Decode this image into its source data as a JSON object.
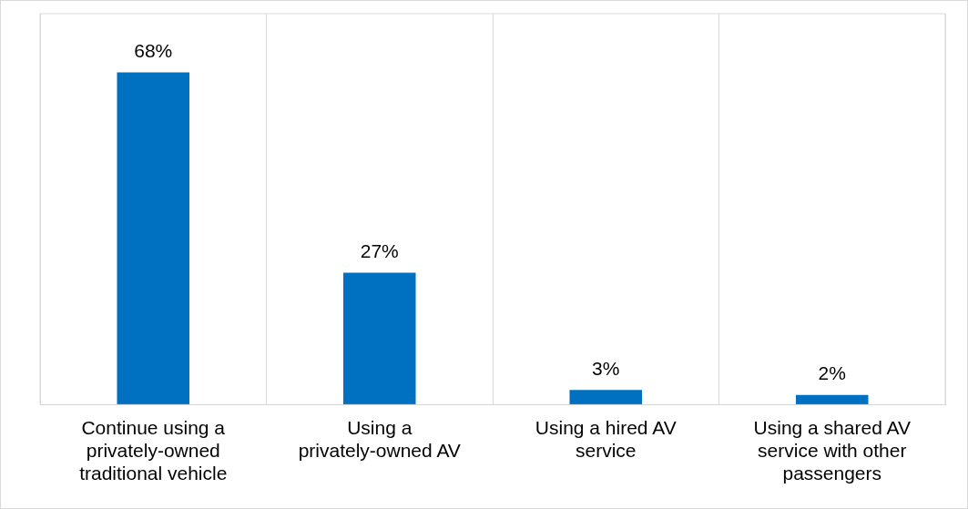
{
  "chart_data": {
    "type": "bar",
    "categories": [
      "Continue using a privately-owned traditional vehicle",
      "Using a privately-owned AV",
      "Using a hired AV service",
      "Using a shared AV service with other passengers"
    ],
    "values": [
      68,
      27,
      3,
      2
    ],
    "value_labels": [
      "68%",
      "27%",
      "3%",
      "2%"
    ],
    "color": "#0070c0",
    "relative": false,
    "grid": "x",
    "legend": false
  }
}
